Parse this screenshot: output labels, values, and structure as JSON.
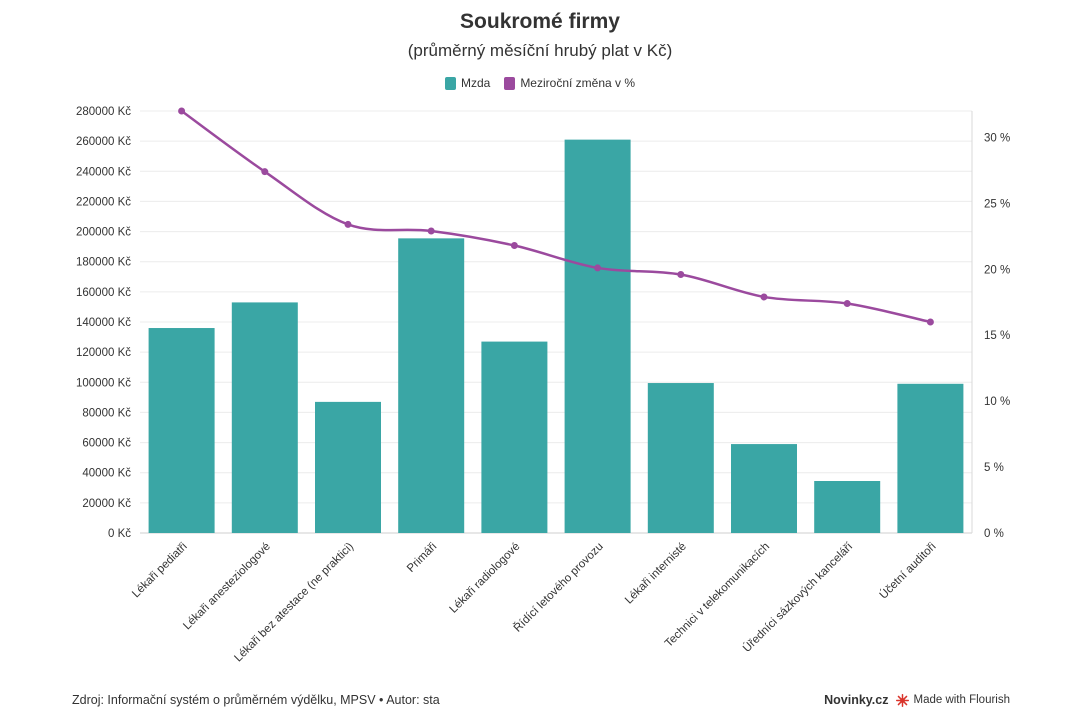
{
  "header": {
    "title": "Soukromé firmy",
    "subtitle": "(průměrný měsíční hrubý plat v Kč)"
  },
  "legend": {
    "items": [
      {
        "label": "Mzda",
        "color": "#3aa6a5"
      },
      {
        "label": "Meziroční změna v %",
        "color": "#9b4a9e"
      }
    ]
  },
  "footer": {
    "source": "Zdroj: Informační systém o průměrném výdělku, MPSV • Autor: sta",
    "brand": "Novinky.cz",
    "made_with": "Made with Flourish",
    "flourish_icon": "flourish-star-icon"
  },
  "chart_data": {
    "type": "bar",
    "categories": [
      "Lékaři pediatři",
      "Lékaři anesteziologové",
      "Lékaři bez atestace (ne praktici)",
      "Primáři",
      "Lékaři radiologové",
      "Řídící letového provozu",
      "Lékaři internisté",
      "Technici v telekomunikacích",
      "Úředníci sázkových kanceláří",
      "Účetní auditoři"
    ],
    "series": [
      {
        "name": "Mzda",
        "type": "bar",
        "axis": "left",
        "color": "#3aa6a5",
        "values": [
          136000,
          153000,
          87000,
          195500,
          127000,
          261000,
          99500,
          59000,
          34500,
          99000
        ]
      },
      {
        "name": "Meziroční změna v %",
        "type": "line",
        "axis": "right",
        "color": "#9b4a9e",
        "values": [
          32.0,
          27.4,
          23.4,
          22.9,
          21.8,
          20.1,
          19.6,
          17.9,
          17.4,
          16.0
        ]
      }
    ],
    "y_left": {
      "ylim": [
        0,
        280000
      ],
      "step": 20000,
      "suffix": " Kč",
      "ticks": [
        "0 Kč",
        "20000 Kč",
        "40000 Kč",
        "60000 Kč",
        "80000 Kč",
        "100000 Kč",
        "120000 Kč",
        "140000 Kč",
        "160000 Kč",
        "180000 Kč",
        "200000 Kč",
        "220000 Kč",
        "240000 Kč",
        "260000 Kč",
        "280000 Kč"
      ]
    },
    "y_right": {
      "ylim": [
        0,
        32
      ],
      "step": 5,
      "suffix": " %",
      "ticks": [
        "0 %",
        "5 %",
        "10 %",
        "15 %",
        "20 %",
        "25 %",
        "30 %"
      ]
    },
    "grid": true,
    "legend_position": "top-center"
  }
}
